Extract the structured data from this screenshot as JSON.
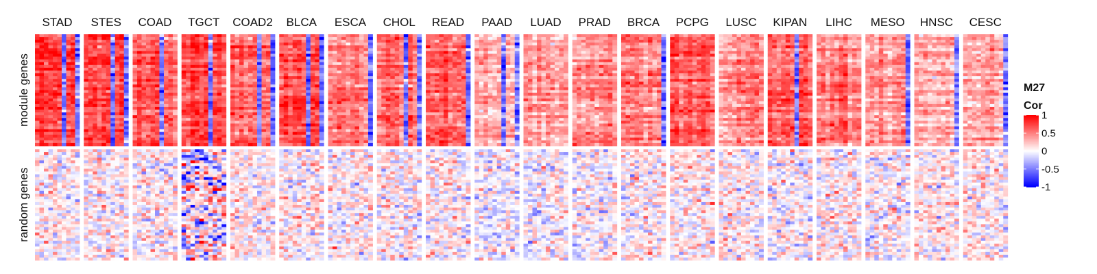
{
  "chart_data": {
    "type": "heatmap",
    "title": "",
    "columns": [
      "STAD",
      "STES",
      "COAD",
      "TGCT",
      "COAD2",
      "BLCA",
      "ESCA",
      "CHOL",
      "READ",
      "PAAD",
      "LUAD",
      "PRAD",
      "BRCA",
      "PCPG",
      "LUSC",
      "KIPAN",
      "LIHC",
      "MESO",
      "HNSC",
      "CESC"
    ],
    "row_groups": [
      "module genes",
      "random genes"
    ],
    "cells_per_block": {
      "columns": 10,
      "rows_module": 40,
      "rows_random": 40
    },
    "module_mean_correlation": [
      0.75,
      0.72,
      0.6,
      0.7,
      0.55,
      0.68,
      0.5,
      0.55,
      0.6,
      0.4,
      0.35,
      0.45,
      0.45,
      0.65,
      0.45,
      0.6,
      0.5,
      0.45,
      0.35,
      0.4
    ],
    "random_mean_correlation": [
      0.05,
      0.05,
      0.05,
      0.0,
      0.05,
      0.05,
      0.05,
      0.05,
      0.05,
      -0.05,
      0.0,
      0.0,
      0.05,
      0.05,
      0.05,
      0.0,
      0.05,
      0.0,
      0.05,
      0.05
    ],
    "negative_columns_module": {
      "STAD": [
        6,
        9
      ],
      "STES": [
        6,
        9
      ],
      "COAD": [
        6
      ],
      "TGCT": [
        6
      ],
      "COAD2": [
        6,
        9
      ],
      "BLCA": [
        6,
        9
      ],
      "ESCA": [
        9
      ],
      "CHOL": [
        6,
        9
      ],
      "READ": [
        9
      ],
      "PAAD": [
        6,
        9
      ],
      "BRCA": [
        9
      ],
      "KIPAN": [
        6
      ],
      "MESO": [
        9
      ],
      "HNSC": [
        9
      ],
      "CESC": [
        9
      ]
    },
    "legend": {
      "title_line1": "M27",
      "title_line2": "Cor",
      "ticks": [
        "1",
        "0.5",
        "0",
        "-0.5",
        "-1"
      ],
      "tick_values": [
        1,
        0.5,
        0,
        -0.5,
        -1
      ],
      "colors": {
        "high": "#ff0000",
        "mid": "#ffffff",
        "low": "#0000ff"
      },
      "placement": "right"
    }
  }
}
